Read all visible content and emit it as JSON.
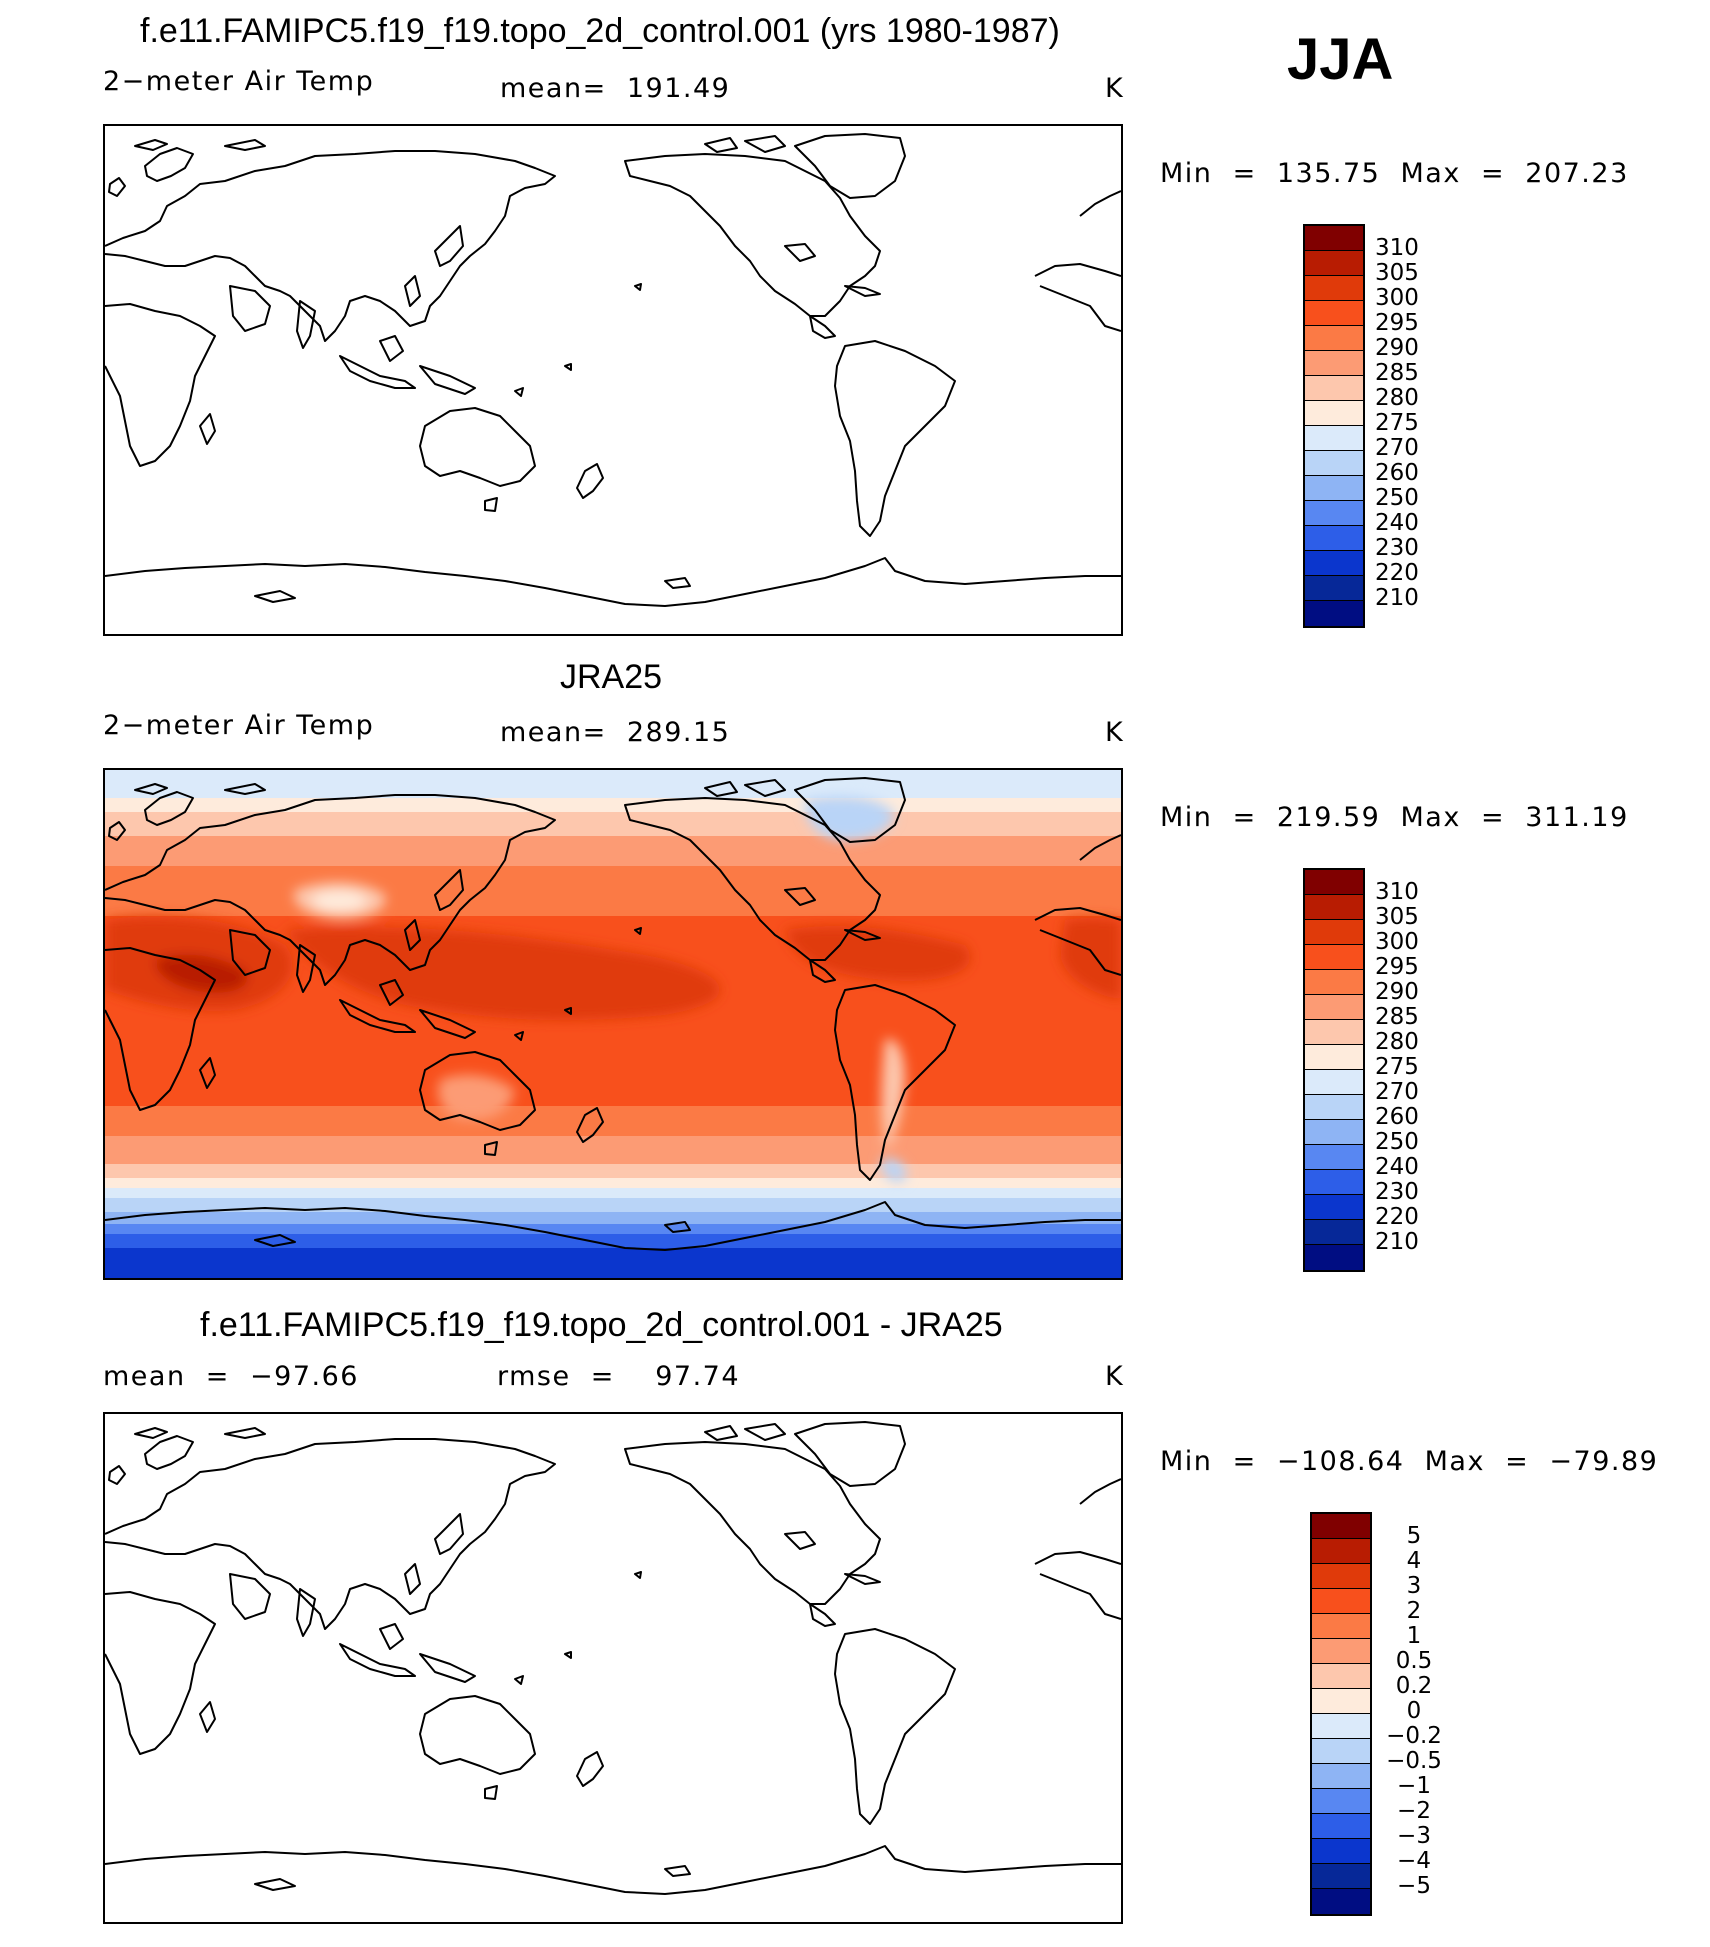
{
  "season": "JJA",
  "panels": [
    {
      "id": "model",
      "title": "f.e11.FAMIPC5.f19_f19.topo_2d_control.001 (yrs 1980-1987)",
      "left_label": "2−meter Air Temp",
      "center_label": "mean=  191.49",
      "right_label": "K",
      "minmax": "Min  =  135.75  Max  =  207.23",
      "filled": false
    },
    {
      "id": "obs",
      "title": "JRA25",
      "left_label": "2−meter Air Temp",
      "center_label": "mean=  289.15",
      "right_label": "K",
      "minmax": "Min  =  219.59  Max  =  311.19",
      "filled": true
    },
    {
      "id": "diff",
      "title": "f.e11.FAMIPC5.f19_f19.topo_2d_control.001 - JRA25",
      "left_label": "mean  =  −97.66",
      "center_label": "rmse  =    97.74",
      "right_label": "K",
      "minmax": "Min  =  −108.64  Max  =  −79.89",
      "filled": false
    }
  ],
  "colorbar_levels_abs": [
    "310",
    "305",
    "300",
    "295",
    "290",
    "285",
    "280",
    "275",
    "270",
    "260",
    "250",
    "240",
    "230",
    "220",
    "210"
  ],
  "colorbar_levels_diff": [
    "5",
    "4",
    "3",
    "2",
    "1",
    "0.5",
    "0.2",
    "0",
    "−0.2",
    "−0.5",
    "−1",
    "−2",
    "−3",
    "−4",
    "−5"
  ],
  "colorbar_colors": [
    "#800000",
    "#b81c02",
    "#e03a0a",
    "#f8501c",
    "#fb7a45",
    "#fc9b74",
    "#fdc7ad",
    "#feebdc",
    "#dbeafa",
    "#b9d4f7",
    "#8eb4f4",
    "#5887f2",
    "#2d5ee8",
    "#0b36cd",
    "#062898",
    "#000d82"
  ]
}
